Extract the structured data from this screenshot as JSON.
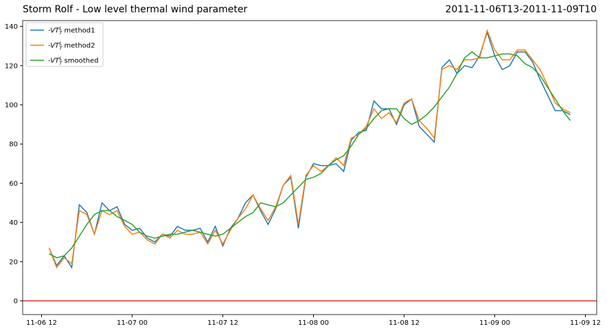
{
  "chart_data": {
    "type": "line",
    "title": "Storm Rolf - Low level thermal wind parameter",
    "title_right": "2011-11-06T13-2011-11-09T10",
    "x": [
      "11-06 13",
      "11-06 14",
      "11-06 15",
      "11-06 16",
      "11-06 17",
      "11-06 18",
      "11-06 19",
      "11-06 20",
      "11-06 21",
      "11-06 22",
      "11-06 23",
      "11-07 00",
      "11-07 01",
      "11-07 02",
      "11-07 03",
      "11-07 04",
      "11-07 05",
      "11-07 06",
      "11-07 07",
      "11-07 08",
      "11-07 09",
      "11-07 10",
      "11-07 11",
      "11-07 12",
      "11-07 13",
      "11-07 14",
      "11-07 15",
      "11-07 16",
      "11-07 17",
      "11-07 18",
      "11-07 19",
      "11-07 20",
      "11-07 21",
      "11-07 22",
      "11-07 23",
      "11-08 00",
      "11-08 01",
      "11-08 02",
      "11-08 03",
      "11-08 04",
      "11-08 05",
      "11-08 06",
      "11-08 07",
      "11-08 08",
      "11-08 09",
      "11-08 10",
      "11-08 11",
      "11-08 12",
      "11-08 13",
      "11-08 14",
      "11-08 15",
      "11-08 16",
      "11-08 17",
      "11-08 18",
      "11-08 19",
      "11-08 20",
      "11-08 21",
      "11-08 22",
      "11-08 23",
      "11-09 00",
      "11-09 01",
      "11-09 02",
      "11-09 03",
      "11-09 04",
      "11-09 05",
      "11-09 06",
      "11-09 07",
      "11-09 08",
      "11-09 09",
      "11-09 10"
    ],
    "series": [
      {
        "name": "-VT_T^L method1",
        "color": "#1f77b4",
        "values": [
          27,
          18,
          23,
          17,
          49,
          45,
          34,
          50,
          46,
          48,
          39,
          36,
          37,
          32,
          30,
          34,
          33,
          38,
          36,
          36,
          37,
          30,
          38,
          28,
          37,
          42,
          50,
          54,
          46,
          39,
          47,
          59,
          63,
          37,
          63,
          70,
          69,
          69,
          70,
          66,
          82,
          86,
          87,
          102,
          98,
          98,
          90,
          100,
          103,
          89,
          85,
          81,
          119,
          123,
          116,
          120,
          119,
          125,
          137,
          125,
          118,
          120,
          127,
          127,
          122,
          113,
          105,
          97,
          97,
          95
        ]
      },
      {
        "name": "-VT_T^L method2",
        "color": "#ff7f0e",
        "values": [
          27,
          17,
          22,
          19,
          46,
          44,
          34,
          46,
          44,
          46,
          38,
          34,
          35,
          31,
          29,
          34,
          32,
          36,
          34,
          34,
          35,
          29,
          36,
          29,
          36,
          42,
          47,
          54,
          47,
          41,
          48,
          59,
          64,
          39,
          64,
          69,
          66,
          69,
          73,
          69,
          83,
          85,
          89,
          98,
          93,
          96,
          91,
          101,
          103,
          92,
          88,
          83,
          118,
          120,
          118,
          123,
          123,
          124,
          138,
          128,
          123,
          123,
          128,
          128,
          123,
          118,
          110,
          101,
          98,
          96
        ]
      },
      {
        "name": "-VT_T^L smoothed",
        "color": "#2ca02c",
        "values": [
          24,
          22,
          23,
          27,
          33,
          39,
          44,
          46,
          46,
          43,
          41,
          39,
          35,
          33,
          32,
          33,
          34,
          34,
          35,
          36,
          35,
          34,
          33,
          34,
          37,
          40,
          43,
          45,
          50,
          49,
          48,
          50,
          54,
          58,
          62,
          63,
          65,
          69,
          72,
          74,
          79,
          85,
          88,
          93,
          97,
          98,
          98,
          93,
          90,
          92,
          95,
          99,
          104,
          109,
          116,
          124,
          127,
          124,
          124,
          125,
          126,
          126,
          125,
          121,
          119,
          115,
          109,
          103,
          97,
          92
        ]
      }
    ],
    "reference_line": {
      "value": 0,
      "color": "#e8302a"
    },
    "xlim": [
      "11-06 09:30",
      "11-09 13:30"
    ],
    "xticks": [
      "11-06 12",
      "11-07 00",
      "11-07 12",
      "11-08 00",
      "11-08 12",
      "11-09 00",
      "11-09 12"
    ],
    "ylim": [
      -7,
      143
    ],
    "yticks": [
      0,
      20,
      40,
      60,
      80,
      100,
      120,
      140
    ],
    "legend": "upper left"
  }
}
